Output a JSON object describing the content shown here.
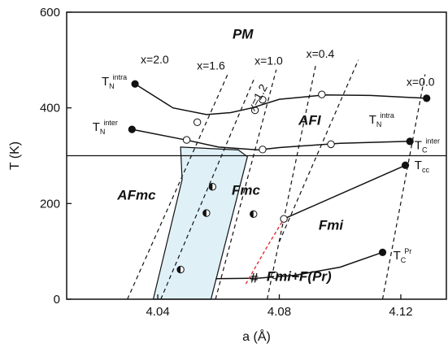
{
  "chart_data": {
    "type": "line",
    "xlabel": "a (Å)",
    "ylabel": "T (K)",
    "xlim": [
      4.01,
      4.135
    ],
    "ylim": [
      0,
      600
    ],
    "x_ticks": [
      "4.04",
      "4.08",
      "4.12"
    ],
    "y_ticks": [
      "0",
      "200",
      "400",
      "600"
    ],
    "colors": {
      "axes": "#111111",
      "fill": "#dff0f7",
      "red_dash": "#e02020"
    },
    "reference_line": {
      "y": 300
    },
    "phase_labels": [
      {
        "text": "PM",
        "x": 4.068,
        "y": 545
      },
      {
        "text": "AFI",
        "x": 4.09,
        "y": 365
      },
      {
        "text": "AFmc",
        "x": 4.033,
        "y": 208
      },
      {
        "text": "Fmc",
        "x": 4.069,
        "y": 218
      },
      {
        "text": "Fmi",
        "x": 4.097,
        "y": 145
      },
      {
        "text": "Fmi+F(Pr)",
        "x": 4.0865,
        "y": 38
      },
      {
        "text": "#",
        "x": 4.0717,
        "y": 35
      }
    ],
    "composition_lines": [
      {
        "label": "x=2.0",
        "points": [
          [
            4.03,
            0
          ],
          [
            4.063,
            470
          ]
        ],
        "label_at": [
          4.039,
          493
        ]
      },
      {
        "label": "x=1.6",
        "points": [
          [
            4.041,
            0
          ],
          [
            4.072,
            465
          ]
        ],
        "label_at": [
          4.0575,
          480
        ]
      },
      {
        "label": "x=1.2",
        "points": [
          [
            4.059,
            0
          ],
          [
            4.079,
            480
          ]
        ],
        "label_at": [
          4.074,
          418
        ]
      },
      {
        "label": "x=1.0",
        "points": [
          [
            4.076,
            0
          ],
          [
            4.092,
            490
          ]
        ],
        "label_at": [
          4.0765,
          490
        ]
      },
      {
        "label": "x=0.4",
        "points": [
          [
            4.08,
            120
          ],
          [
            4.106,
            500
          ]
        ],
        "label_at": [
          4.0935,
          505
        ]
      },
      {
        "label": "x=0.0",
        "points": [
          [
            4.114,
            0
          ],
          [
            4.128,
            470
          ]
        ],
        "label_at": [
          4.1265,
          446
        ]
      }
    ],
    "series": [
      {
        "kind": "solid",
        "points": [
          [
            4.0325,
            450
          ],
          [
            4.045,
            400
          ],
          [
            4.056,
            386
          ],
          [
            4.064,
            390
          ],
          [
            4.071,
            400
          ],
          [
            4.08,
            418
          ],
          [
            4.095,
            427
          ],
          [
            4.11,
            426
          ],
          [
            4.1285,
            420
          ]
        ],
        "markers": [
          {
            "at": [
              4.0325,
              450
            ],
            "style": "filled"
          },
          {
            "at": [
              4.094,
              428
            ],
            "style": "open"
          },
          {
            "at": [
              4.1285,
              420
            ],
            "style": "filled"
          }
        ]
      },
      {
        "kind": "solid",
        "points": [
          [
            4.0315,
            355
          ],
          [
            4.05,
            332
          ],
          [
            4.06,
            318
          ],
          [
            4.073,
            312
          ],
          [
            4.08,
            317
          ],
          [
            4.1,
            326
          ],
          [
            4.123,
            330
          ]
        ],
        "markers": [
          {
            "at": [
              4.0315,
              355
            ],
            "style": "filled"
          },
          {
            "at": [
              4.0495,
              333
            ],
            "style": "open"
          },
          {
            "at": [
              4.0745,
              313
            ],
            "style": "open"
          },
          {
            "at": [
              4.097,
              324
            ],
            "style": "open"
          },
          {
            "at": [
              4.123,
              330
            ],
            "style": "filled"
          }
        ]
      },
      {
        "kind": "solid",
        "points": [
          [
            4.0815,
            168
          ],
          [
            4.1215,
            280
          ]
        ],
        "markers": [
          {
            "at": [
              4.0815,
              168
            ],
            "style": "open"
          },
          {
            "at": [
              4.1215,
              280
            ],
            "style": "filled"
          }
        ]
      },
      {
        "kind": "solid",
        "points": [
          [
            4.059,
            43
          ],
          [
            4.073,
            44
          ],
          [
            4.085,
            50
          ],
          [
            4.1,
            67
          ],
          [
            4.114,
            98
          ]
        ],
        "markers": [
          {
            "at": [
              4.0785,
              50
            ],
            "style": "open"
          },
          {
            "at": [
              4.114,
              98
            ],
            "style": "filled"
          }
        ]
      },
      {
        "kind": "red_dash",
        "points": [
          [
            4.069,
            32
          ],
          [
            4.076,
            110
          ],
          [
            4.0815,
            168
          ]
        ],
        "markers": []
      }
    ],
    "extra_markers": [
      {
        "at": [
          4.053,
          370
        ],
        "style": "open"
      },
      {
        "at": [
          4.072,
          395
        ],
        "style": "open"
      },
      {
        "at": [
          4.0745,
          417
        ],
        "style": "open"
      },
      {
        "at": [
          4.058,
          235
        ],
        "style": "half"
      },
      {
        "at": [
          4.056,
          180
        ],
        "style": "half"
      },
      {
        "at": [
          4.0475,
          62
        ],
        "style": "half"
      },
      {
        "at": [
          4.0715,
          178
        ],
        "style": "half"
      }
    ],
    "shaded_region": [
      [
        4.0475,
        318
      ],
      [
        4.0665,
        312
      ],
      [
        4.0695,
        298
      ],
      [
        4.0575,
        0
      ],
      [
        4.0385,
        0
      ],
      [
        4.048,
        250
      ]
    ],
    "point_labels": [
      {
        "main": "T",
        "sub": "N",
        "sup": "intra",
        "x": 4.0215,
        "y": 447
      },
      {
        "main": "T",
        "sub": "N",
        "sup": "inter",
        "x": 4.0185,
        "y": 352
      },
      {
        "main": "T",
        "sub": "N",
        "sup": "intra",
        "x": 4.1095,
        "y": 367
      },
      {
        "main": "T",
        "sub": "C",
        "sup": "inter",
        "x": 4.1245,
        "y": 314
      },
      {
        "main": "T",
        "sub": "cc",
        "sup": "",
        "x": 4.1245,
        "y": 272
      },
      {
        "main": "T",
        "sub": "C",
        "sup": "Pr",
        "x": 4.1175,
        "y": 83
      }
    ]
  }
}
